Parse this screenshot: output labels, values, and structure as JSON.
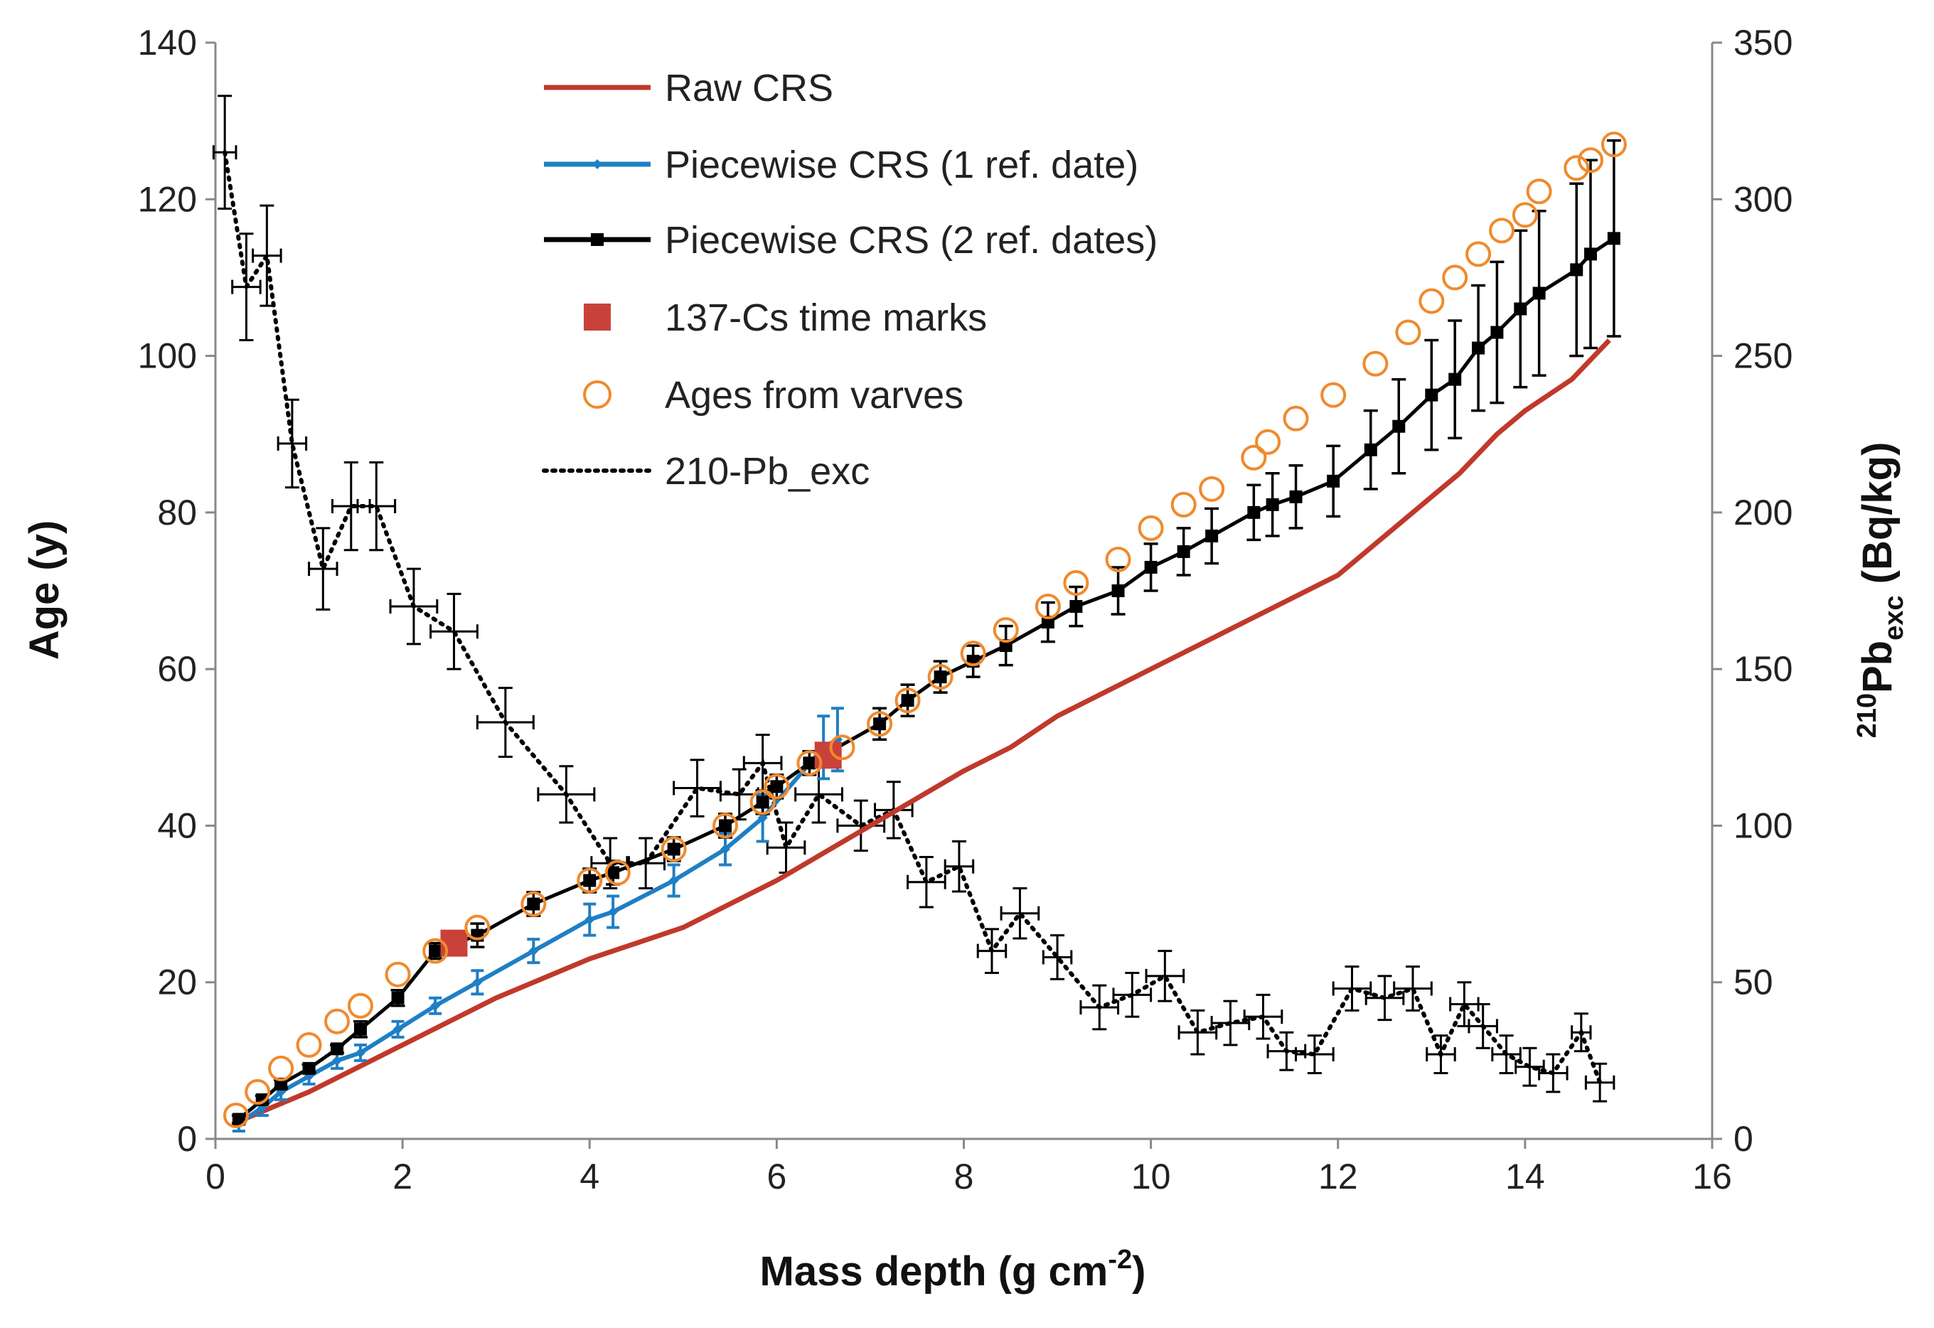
{
  "chart_data": {
    "type": "line",
    "title": "",
    "xlabel": "Mass depth (g cm",
    "xlabel_sup": "-2",
    "xlabel_end": ")",
    "ylabel": "Age (y)",
    "y2label_sup": "210",
    "y2label_main": "Pb",
    "y2label_sub": "exc",
    "y2label_unit": " (Bq/kg)",
    "xlim": [
      0,
      16
    ],
    "ylim": [
      0,
      140
    ],
    "y2lim": [
      0,
      350
    ],
    "xticks": [
      "0",
      "2",
      "4",
      "6",
      "8",
      "10",
      "12",
      "14",
      "16"
    ],
    "yticks": [
      "0",
      "20",
      "40",
      "60",
      "80",
      "100",
      "120",
      "140"
    ],
    "y2ticks": [
      "0",
      "50",
      "100",
      "150",
      "200",
      "250",
      "300",
      "350"
    ],
    "legend": [
      {
        "label": "Raw CRS",
        "style": "red-line"
      },
      {
        "label": "Piecewise CRS (1 ref. date)",
        "style": "blue-line-diamond"
      },
      {
        "label": "Piecewise CRS (2 ref. dates)",
        "style": "black-line-square"
      },
      {
        "label": "137-Cs time marks",
        "style": "red-square"
      },
      {
        "label": "Ages from varves",
        "style": "orange-circle"
      },
      {
        "label": "210-Pb_exc",
        "style": "dotted-line"
      }
    ],
    "colors": {
      "raw": "#c0392b",
      "piecewise1": "#1f7fc4",
      "piecewise2": "#000000",
      "cs": "#c9423a",
      "varves": "#f08a2c",
      "pb": "#000000",
      "axis": "#888888"
    },
    "series": [
      {
        "name": "Raw CRS",
        "x": [
          0.2,
          1,
          2,
          3,
          4,
          5,
          6,
          7,
          8,
          8.5,
          9,
          10,
          10.5,
          11,
          11.5,
          12,
          12.5,
          13,
          13.3,
          13.7,
          14,
          14.5,
          14.9
        ],
        "y": [
          2,
          6,
          12,
          18,
          23,
          27,
          33,
          40,
          47,
          50,
          54,
          60,
          63,
          66,
          69,
          72,
          77,
          82,
          85,
          90,
          93,
          97,
          102
        ]
      },
      {
        "name": "Piecewise CRS (1 ref. date)",
        "x": [
          0.25,
          0.5,
          0.7,
          1.0,
          1.3,
          1.55,
          1.95,
          2.35,
          2.8,
          3.4,
          4.0,
          4.25,
          4.9,
          5.45,
          5.85,
          6.5,
          6.65
        ],
        "y": [
          2,
          4,
          6,
          8,
          10,
          11,
          14,
          17,
          20,
          24,
          28,
          29,
          33,
          37,
          41,
          50,
          51
        ],
        "err": [
          1,
          1,
          1,
          1,
          1,
          1,
          1,
          1,
          1.5,
          1.5,
          2,
          2,
          2,
          2,
          3,
          4,
          4
        ]
      },
      {
        "name": "Piecewise CRS (2 ref. dates)",
        "x": [
          0.25,
          0.5,
          0.7,
          1.0,
          1.3,
          1.55,
          1.95,
          2.35,
          2.8,
          3.4,
          4.0,
          4.25,
          4.9,
          5.45,
          5.85,
          6.0,
          6.35,
          7.1,
          7.4,
          7.75,
          8.1,
          8.45,
          8.9,
          9.2,
          9.65,
          10.0,
          10.35,
          10.65,
          11.1,
          11.3,
          11.55,
          11.95,
          12.35,
          12.65,
          13.0,
          13.25,
          13.5,
          13.7,
          13.95,
          14.15,
          14.55,
          14.7,
          14.95
        ],
        "y": [
          2.5,
          5,
          7,
          9,
          11.5,
          14,
          18,
          24,
          26,
          30,
          33,
          34,
          37,
          40,
          43,
          45,
          48,
          53,
          56,
          59,
          61,
          63,
          66,
          68,
          70,
          73,
          75,
          77,
          80,
          81,
          82,
          84,
          88,
          91,
          95,
          97,
          101,
          103,
          106,
          108,
          111,
          113,
          115
        ],
        "err": [
          0.5,
          0.5,
          0.5,
          0.5,
          0.5,
          1,
          1,
          1,
          1.5,
          1.5,
          1.5,
          1.5,
          1.5,
          1.5,
          1.5,
          1.5,
          1.5,
          2,
          2,
          2,
          2,
          2.5,
          2.5,
          2.5,
          3,
          3,
          3,
          3.5,
          3.5,
          4,
          4,
          4.5,
          5,
          6,
          7,
          7.5,
          8,
          9,
          10,
          10.5,
          11,
          12,
          12.5
        ]
      },
      {
        "name": "137-Cs time marks",
        "x": [
          2.55,
          6.55
        ],
        "y": [
          25,
          49
        ]
      },
      {
        "name": "Ages from varves",
        "x": [
          0.22,
          0.45,
          0.7,
          1.0,
          1.3,
          1.55,
          1.95,
          2.35,
          2.8,
          3.4,
          4.0,
          4.3,
          4.9,
          5.45,
          5.85,
          6.0,
          6.35,
          6.7,
          7.1,
          7.4,
          7.75,
          8.1,
          8.45,
          8.9,
          9.2,
          9.65,
          10.0,
          10.35,
          10.65,
          11.1,
          11.25,
          11.55,
          11.95,
          12.4,
          12.75,
          13.0,
          13.25,
          13.5,
          13.75,
          14.0,
          14.15,
          14.55,
          14.7,
          14.95
        ],
        "y": [
          3,
          6,
          9,
          12,
          15,
          17,
          21,
          24,
          27,
          30,
          33,
          34,
          37,
          40,
          43,
          45,
          48,
          50,
          53,
          56,
          59,
          62,
          65,
          68,
          71,
          74,
          78,
          81,
          83,
          87,
          89,
          92,
          95,
          99,
          103,
          107,
          110,
          113,
          116,
          118,
          121,
          124,
          125,
          127
        ]
      },
      {
        "name": "210-Pb_exc",
        "axis": "right",
        "x": [
          0.1,
          0.33,
          0.55,
          0.82,
          1.15,
          1.45,
          1.72,
          2.12,
          2.55,
          3.1,
          3.75,
          4.22,
          4.6,
          5.15,
          5.6,
          5.85,
          6.1,
          6.45,
          6.9,
          7.25,
          7.6,
          7.95,
          8.3,
          8.6,
          9.0,
          9.45,
          9.8,
          10.15,
          10.5,
          10.85,
          11.2,
          11.45,
          11.75,
          12.15,
          12.5,
          12.8,
          13.1,
          13.35,
          13.55,
          13.8,
          14.05,
          14.3,
          14.6,
          14.8
        ],
        "y": [
          315,
          272,
          282,
          222,
          182,
          202,
          202,
          170,
          162,
          133,
          110,
          88,
          88,
          112,
          110,
          120,
          93,
          110,
          100,
          105,
          82,
          87,
          60,
          72,
          58,
          42,
          46,
          52,
          34,
          37,
          39,
          28,
          27,
          48,
          45,
          48,
          27,
          43,
          36,
          27,
          23,
          21,
          34,
          18
        ],
        "xerr": [
          0.12,
          0.15,
          0.15,
          0.15,
          0.15,
          0.2,
          0.2,
          0.25,
          0.25,
          0.3,
          0.3,
          0.2,
          0.2,
          0.25,
          0.2,
          0.2,
          0.2,
          0.25,
          0.25,
          0.2,
          0.2,
          0.15,
          0.15,
          0.2,
          0.15,
          0.2,
          0.2,
          0.2,
          0.2,
          0.2,
          0.2,
          0.2,
          0.2,
          0.2,
          0.2,
          0.2,
          0.15,
          0.15,
          0.15,
          0.15,
          0.15,
          0.15,
          0.1,
          0.15
        ],
        "yerr": [
          18,
          17,
          16,
          14,
          13,
          14,
          14,
          12,
          12,
          11,
          9,
          8,
          8,
          9,
          8,
          9,
          8,
          9,
          8,
          9,
          8,
          8,
          7,
          8,
          7,
          7,
          7,
          8,
          7,
          7,
          7,
          6,
          6,
          7,
          7,
          7,
          6,
          7,
          7,
          6,
          6,
          6,
          6,
          6
        ]
      }
    ]
  }
}
